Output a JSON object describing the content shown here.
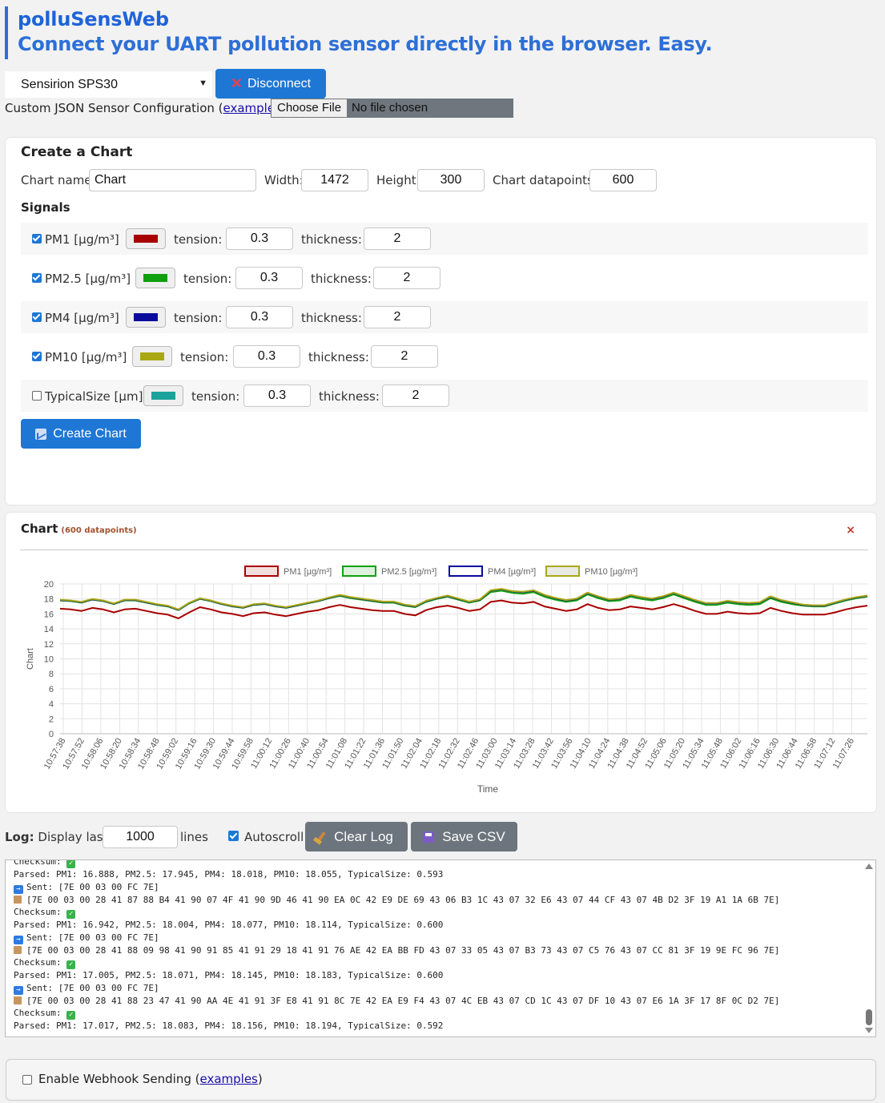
{
  "header": {
    "title": "polluSensWeb",
    "subtitle": "Connect your UART pollution sensor directly in the browser. Easy."
  },
  "sensor_select": {
    "value": "Sensirion SPS30"
  },
  "disconnect_label": "Disconnect",
  "custom_json": {
    "prefix": "Custom JSON Sensor Configuration (",
    "link": "example",
    "suffix": "):"
  },
  "file_input": {
    "button": "Choose File",
    "status": "No file chosen"
  },
  "create_chart": {
    "title": "Create a Chart",
    "name_label": "Chart name:",
    "name_value": "Chart",
    "width_label": "Width:",
    "width_value": "1472",
    "height_label": "Height:",
    "height_value": "300",
    "datapoints_label": "Chart datapoints:",
    "datapoints_value": "600",
    "signals_title": "Signals",
    "tension_label": "tension:",
    "thickness_label": "thickness:",
    "signals": [
      {
        "label": "PM1 [µg/m³]",
        "checked": true,
        "color": "#a80000",
        "tension": "0.3",
        "thickness": "2"
      },
      {
        "label": "PM2.5 [µg/m³]",
        "checked": true,
        "color": "#0fa00f",
        "tension": "0.3",
        "thickness": "2"
      },
      {
        "label": "PM4 [µg/m³]",
        "checked": true,
        "color": "#0a0a9c",
        "tension": "0.3",
        "thickness": "2"
      },
      {
        "label": "PM10 [µg/m³]",
        "checked": true,
        "color": "#a8a814",
        "tension": "0.3",
        "thickness": "2"
      },
      {
        "label": "TypicalSize [µm]",
        "checked": false,
        "color": "#1aa39a",
        "tension": "0.3",
        "thickness": "2"
      }
    ],
    "button_label": "Create Chart"
  },
  "chart_panel": {
    "title": "Chart",
    "subtitle": "(600 datapoints)",
    "close_label": "×"
  },
  "chart_data": {
    "type": "line",
    "title": "",
    "xlabel": "Time",
    "ylabel": "Chart",
    "ylim": [
      0,
      20
    ],
    "yticks": [
      0,
      2,
      4,
      6,
      8,
      10,
      12,
      14,
      16,
      18,
      20
    ],
    "grid": true,
    "legend": "top-center",
    "x_tick_labels": [
      "10:57:38",
      "10:57:52",
      "10:58:06",
      "10:58:20",
      "10:58:34",
      "10:58:48",
      "10:59:02",
      "10:59:16",
      "10:59:30",
      "10:59:44",
      "10:59:58",
      "11:00:12",
      "11:00:26",
      "11:00:40",
      "11:00:54",
      "11:01:08",
      "11:01:22",
      "11:01:36",
      "11:01:50",
      "11:02:04",
      "11:02:18",
      "11:02:32",
      "11:02:46",
      "11:03:00",
      "11:03:14",
      "11:03:28",
      "11:03:42",
      "11:03:56",
      "11:04:10",
      "11:04:24",
      "11:04:38",
      "11:04:52",
      "11:05:06",
      "11:05:20",
      "11:05:34",
      "11:05:48",
      "11:06:02",
      "11:06:16",
      "11:06:30",
      "11:06:44",
      "11:06:58",
      "11:07:12",
      "11:07:26"
    ],
    "series": [
      {
        "name": "PM1 [µg/m³]",
        "color": "#a80000",
        "fill": "#f3dede",
        "values": [
          16.7,
          16.6,
          16.4,
          16.8,
          16.6,
          16.2,
          16.6,
          16.7,
          16.4,
          16.1,
          15.9,
          15.4,
          16.2,
          16.9,
          16.6,
          16.2,
          16.0,
          15.7,
          16.1,
          16.2,
          15.9,
          15.7,
          16.0,
          16.3,
          16.5,
          16.9,
          17.2,
          16.9,
          16.7,
          16.5,
          16.4,
          16.4,
          16.0,
          15.8,
          16.5,
          16.9,
          17.1,
          16.8,
          16.4,
          16.6,
          17.6,
          17.8,
          17.5,
          17.4,
          17.6,
          17.0,
          16.7,
          16.4,
          16.6,
          17.3,
          16.8,
          16.5,
          16.6,
          17.0,
          16.8,
          16.6,
          16.9,
          17.3,
          16.9,
          16.4,
          16.0,
          16.0,
          16.3,
          16.1,
          16.0,
          16.1,
          16.8,
          16.4,
          16.1,
          15.9,
          15.9,
          15.9,
          16.2,
          16.6,
          16.9,
          17.1
        ]
      },
      {
        "name": "PM2.5 [µg/m³]",
        "color": "#0fa00f",
        "fill": "#ddf1dd",
        "values": [
          17.8,
          17.7,
          17.5,
          17.9,
          17.7,
          17.3,
          17.8,
          17.8,
          17.5,
          17.2,
          17.0,
          16.5,
          17.4,
          18.0,
          17.7,
          17.3,
          17.0,
          16.8,
          17.2,
          17.3,
          17.0,
          16.8,
          17.1,
          17.4,
          17.7,
          18.1,
          18.4,
          18.1,
          17.9,
          17.7,
          17.5,
          17.5,
          17.1,
          16.9,
          17.6,
          18.0,
          18.3,
          17.9,
          17.5,
          17.8,
          18.9,
          19.1,
          18.8,
          18.7,
          18.9,
          18.3,
          17.9,
          17.6,
          17.8,
          18.6,
          18.1,
          17.7,
          17.8,
          18.3,
          18.0,
          17.8,
          18.1,
          18.6,
          18.1,
          17.6,
          17.2,
          17.2,
          17.5,
          17.3,
          17.2,
          17.3,
          18.1,
          17.6,
          17.3,
          17.1,
          17.0,
          17.0,
          17.4,
          17.8,
          18.1,
          18.3
        ]
      },
      {
        "name": "PM4 [µg/m³]",
        "color": "#0a0a9c",
        "fill": "#ffffff",
        "values": [
          17.85,
          17.75,
          17.55,
          17.95,
          17.75,
          17.35,
          17.85,
          17.85,
          17.55,
          17.25,
          17.05,
          16.55,
          17.45,
          18.05,
          17.75,
          17.35,
          17.05,
          16.85,
          17.25,
          17.35,
          17.05,
          16.85,
          17.15,
          17.45,
          17.75,
          18.15,
          18.5,
          18.2,
          18.0,
          17.8,
          17.6,
          17.6,
          17.2,
          17.0,
          17.7,
          18.1,
          18.4,
          18.0,
          17.6,
          17.9,
          19.1,
          19.3,
          19.0,
          18.9,
          19.1,
          18.5,
          18.1,
          17.8,
          18.0,
          18.8,
          18.3,
          17.9,
          18.0,
          18.5,
          18.2,
          18.0,
          18.3,
          18.8,
          18.3,
          17.8,
          17.4,
          17.4,
          17.7,
          17.5,
          17.4,
          17.5,
          18.3,
          17.8,
          17.5,
          17.2,
          17.1,
          17.1,
          17.5,
          17.9,
          18.2,
          18.4
        ]
      },
      {
        "name": "PM10 [µg/m³]",
        "color": "#a8a814",
        "fill": "#e9e9e4",
        "values": [
          17.9,
          17.8,
          17.6,
          18.0,
          17.8,
          17.4,
          17.9,
          17.9,
          17.6,
          17.3,
          17.1,
          16.6,
          17.5,
          18.1,
          17.8,
          17.4,
          17.1,
          16.9,
          17.3,
          17.4,
          17.1,
          16.9,
          17.2,
          17.5,
          17.8,
          18.2,
          18.55,
          18.25,
          18.05,
          17.85,
          17.65,
          17.65,
          17.25,
          17.05,
          17.75,
          18.15,
          18.45,
          18.05,
          17.65,
          17.95,
          19.15,
          19.35,
          19.05,
          18.95,
          19.15,
          18.55,
          18.15,
          17.85,
          18.05,
          18.85,
          18.35,
          17.95,
          18.05,
          18.55,
          18.25,
          18.05,
          18.35,
          18.85,
          18.35,
          17.85,
          17.45,
          17.45,
          17.75,
          17.55,
          17.45,
          17.55,
          18.35,
          17.85,
          17.55,
          17.25,
          17.15,
          17.15,
          17.55,
          17.95,
          18.25,
          18.45
        ]
      }
    ]
  },
  "log": {
    "label_bold": "Log:",
    "label_rest": "Display last",
    "lines_value": "1000",
    "lines_suffix": "lines",
    "autoscroll_label": "Autoscroll",
    "clear_label": "Clear Log",
    "save_label": "Save CSV",
    "entries": [
      {
        "kind": "checksum",
        "text": "Checksum: "
      },
      {
        "kind": "parsed",
        "text": "Parsed: PM1: 16.888, PM2.5: 17.945, PM4: 18.018, PM10: 18.055, TypicalSize: 0.593"
      },
      {
        "kind": "sent",
        "text": "Sent: [7E 00 03 00 FC 7E]"
      },
      {
        "kind": "recv",
        "text": "[7E 00 03 00 28 41 87 88 B4 41 90 07 4F 41 90 9D 46 41 90 EA 0C 42 E9 DE 69 43 06 B3 1C 43 07 32 E6 43 07 44 CF 43 07 4B D2 3F 19 A1 1A 6B 7E]"
      },
      {
        "kind": "checksum",
        "text": "Checksum: "
      },
      {
        "kind": "parsed",
        "text": "Parsed: PM1: 16.942, PM2.5: 18.004, PM4: 18.077, PM10: 18.114, TypicalSize: 0.600"
      },
      {
        "kind": "sent",
        "text": "Sent: [7E 00 03 00 FC 7E]"
      },
      {
        "kind": "recv",
        "text": "[7E 00 03 00 28 41 88 09 98 41 90 91 85 41 91 29 18 41 91 76 AE 42 EA BB FD 43 07 33 05 43 07 B3 73 43 07 C5 76 43 07 CC 81 3F 19 9E FC 96 7E]"
      },
      {
        "kind": "checksum",
        "text": "Checksum: "
      },
      {
        "kind": "parsed",
        "text": "Parsed: PM1: 17.005, PM2.5: 18.071, PM4: 18.145, PM10: 18.183, TypicalSize: 0.600"
      },
      {
        "kind": "sent",
        "text": "Sent: [7E 00 03 00 FC 7E]"
      },
      {
        "kind": "recv",
        "text": "[7E 00 03 00 28 41 88 23 47 41 90 AA 4E 41 91 3F E8 41 91 8C 7E 42 EA E9 F4 43 07 4C EB 43 07 CD 1C 43 07 DF 10 43 07 E6 1A 3F 17 8F 0C D2 7E]"
      },
      {
        "kind": "checksum",
        "text": "Checksum: "
      },
      {
        "kind": "parsed",
        "text": "Parsed: PM1: 17.017, PM2.5: 18.083, PM4: 18.156, PM10: 18.194, TypicalSize: 0.592"
      }
    ]
  },
  "webhook": {
    "label": "Enable Webhook Sending (",
    "link": "examples",
    "suffix": ")"
  }
}
